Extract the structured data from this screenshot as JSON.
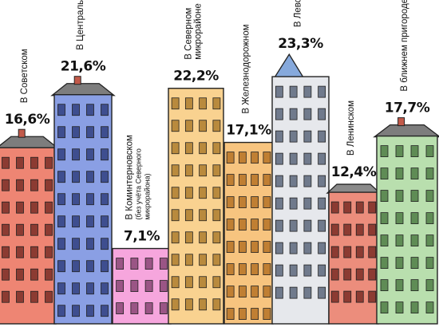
{
  "chart_data": {
    "type": "bar",
    "categories": [
      "В Советском",
      "В Центральном",
      "В Коминтерновском",
      "В Северном микрорайоне",
      "В Железнодорожном",
      "В Левобережном",
      "В Ленинском",
      "В ближнем пригороде"
    ],
    "category_lines": [
      [
        "В Советском"
      ],
      [
        "В Центральном"
      ],
      [
        "В Коминтерновском"
      ],
      [
        "В Северном",
        "микрорайоне"
      ],
      [
        "В Железнодорожном"
      ],
      [
        "В Левобережном"
      ],
      [
        "В Ленинском"
      ],
      [
        "В ближнем пригороде"
      ]
    ],
    "notes": [
      "",
      "",
      "(без учёта Северного микрорайона)",
      "",
      "",
      "",
      "",
      ""
    ],
    "note_lines": [
      [],
      [],
      [
        "(без учёта Северного",
        "микрорайона)"
      ],
      [],
      [],
      [],
      [],
      []
    ],
    "values": [
      16.6,
      21.6,
      7.1,
      22.2,
      17.1,
      23.3,
      12.4,
      17.7
    ],
    "value_labels": [
      "16,6%",
      "21,6%",
      "7,1%",
      "22,2%",
      "17,1%",
      "23,3%",
      "12,4%",
      "17,7%"
    ],
    "unit": "%",
    "colors": [
      "#ee8573",
      "#8a9fe4",
      "#f6a6dd",
      "#f9d290",
      "#f7c47f",
      "#e6e8ec",
      "#ec8d7c",
      "#b9dfae"
    ]
  }
}
